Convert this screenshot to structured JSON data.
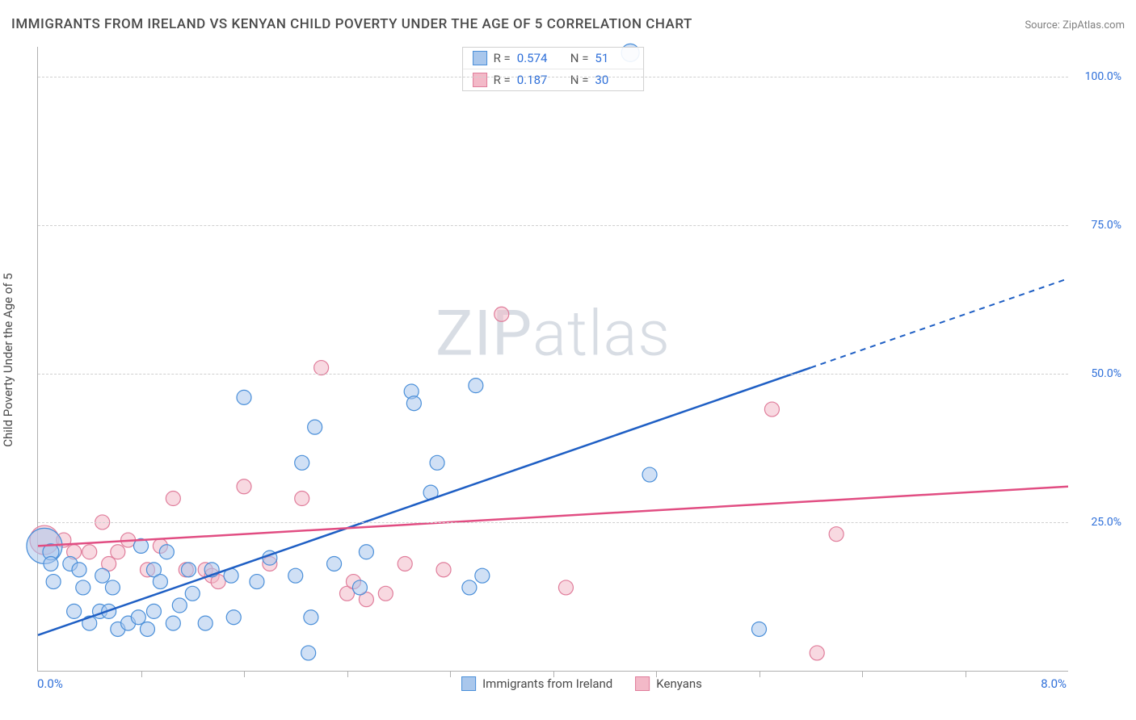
{
  "title": "IMMIGRANTS FROM IRELAND VS KENYAN CHILD POVERTY UNDER THE AGE OF 5 CORRELATION CHART",
  "source_label": "Source:",
  "source_name": "ZipAtlas.com",
  "y_axis_title": "Child Poverty Under the Age of 5",
  "watermark_a": "ZIP",
  "watermark_b": "atlas",
  "chart": {
    "type": "scatter",
    "xlim": [
      0,
      8
    ],
    "ylim": [
      0,
      105
    ],
    "x_label_min": "0.0%",
    "x_label_max": "8.0%",
    "y_ticks": [
      25,
      50,
      75,
      100
    ],
    "y_tick_labels": [
      "25.0%",
      "50.0%",
      "75.0%",
      "100.0%"
    ],
    "x_tick_positions": [
      0.8,
      1.6,
      2.4,
      3.2,
      4.0,
      4.8,
      5.6,
      6.4,
      7.2
    ],
    "grid_color": "#d0d0d0",
    "axis_color": "#b0b0b0",
    "background_color": "#ffffff",
    "label_color": "#2e6fd9",
    "title_color": "#4a4a4a",
    "title_fontsize": 17,
    "label_fontsize": 15,
    "tick_fontsize": 14
  },
  "series": [
    {
      "name": "Immigrants from Ireland",
      "fill": "#a9c7ec",
      "stroke": "#4a8fd9",
      "line_color": "#1f5fc4",
      "fill_opacity": 0.55,
      "marker_r": 9,
      "R_label": "R =",
      "R": "0.574",
      "N_label": "N =",
      "N": "51",
      "trend": {
        "x1": 0,
        "y1": 6,
        "x2": 6.0,
        "y2": 51,
        "dash_from_x": 6.0,
        "dash_to_x": 8.0,
        "dash_to_y": 66
      },
      "points": [
        {
          "x": 0.05,
          "y": 21,
          "r": 22
        },
        {
          "x": 0.1,
          "y": 20,
          "r": 10
        },
        {
          "x": 0.1,
          "y": 18,
          "r": 9
        },
        {
          "x": 0.12,
          "y": 15,
          "r": 9
        },
        {
          "x": 0.25,
          "y": 18,
          "r": 9
        },
        {
          "x": 0.28,
          "y": 10,
          "r": 9
        },
        {
          "x": 0.32,
          "y": 17,
          "r": 9
        },
        {
          "x": 0.35,
          "y": 14,
          "r": 9
        },
        {
          "x": 0.4,
          "y": 8,
          "r": 9
        },
        {
          "x": 0.48,
          "y": 10,
          "r": 9
        },
        {
          "x": 0.5,
          "y": 16,
          "r": 9
        },
        {
          "x": 0.55,
          "y": 10,
          "r": 9
        },
        {
          "x": 0.58,
          "y": 14,
          "r": 9
        },
        {
          "x": 0.62,
          "y": 7,
          "r": 9
        },
        {
          "x": 0.7,
          "y": 8,
          "r": 9
        },
        {
          "x": 0.78,
          "y": 9,
          "r": 9
        },
        {
          "x": 0.8,
          "y": 21,
          "r": 9
        },
        {
          "x": 0.85,
          "y": 7,
          "r": 9
        },
        {
          "x": 0.9,
          "y": 10,
          "r": 9
        },
        {
          "x": 0.9,
          "y": 17,
          "r": 9
        },
        {
          "x": 0.95,
          "y": 15,
          "r": 9
        },
        {
          "x": 1.0,
          "y": 20,
          "r": 9
        },
        {
          "x": 1.05,
          "y": 8,
          "r": 9
        },
        {
          "x": 1.1,
          "y": 11,
          "r": 9
        },
        {
          "x": 1.17,
          "y": 17,
          "r": 9
        },
        {
          "x": 1.2,
          "y": 13,
          "r": 9
        },
        {
          "x": 1.3,
          "y": 8,
          "r": 9
        },
        {
          "x": 1.35,
          "y": 17,
          "r": 9
        },
        {
          "x": 1.5,
          "y": 16,
          "r": 9
        },
        {
          "x": 1.52,
          "y": 9,
          "r": 9
        },
        {
          "x": 1.6,
          "y": 46,
          "r": 9
        },
        {
          "x": 1.7,
          "y": 15,
          "r": 9
        },
        {
          "x": 1.8,
          "y": 19,
          "r": 9
        },
        {
          "x": 2.0,
          "y": 16,
          "r": 9
        },
        {
          "x": 2.05,
          "y": 35,
          "r": 9
        },
        {
          "x": 2.1,
          "y": 3,
          "r": 9
        },
        {
          "x": 2.12,
          "y": 9,
          "r": 9
        },
        {
          "x": 2.15,
          "y": 41,
          "r": 9
        },
        {
          "x": 2.3,
          "y": 18,
          "r": 9
        },
        {
          "x": 2.55,
          "y": 20,
          "r": 9
        },
        {
          "x": 2.9,
          "y": 47,
          "r": 9
        },
        {
          "x": 2.92,
          "y": 45,
          "r": 9
        },
        {
          "x": 3.05,
          "y": 30,
          "r": 9
        },
        {
          "x": 3.1,
          "y": 35,
          "r": 9
        },
        {
          "x": 3.35,
          "y": 14,
          "r": 9
        },
        {
          "x": 3.4,
          "y": 48,
          "r": 9
        },
        {
          "x": 3.45,
          "y": 16,
          "r": 9
        },
        {
          "x": 4.75,
          "y": 33,
          "r": 9
        },
        {
          "x": 4.6,
          "y": 104,
          "r": 11
        },
        {
          "x": 5.6,
          "y": 7,
          "r": 9
        },
        {
          "x": 2.5,
          "y": 14,
          "r": 9
        }
      ]
    },
    {
      "name": "Kenyans",
      "fill": "#f3b9c8",
      "stroke": "#e07d9b",
      "line_color": "#e14d82",
      "fill_opacity": 0.55,
      "marker_r": 9,
      "R_label": "R =",
      "R": "0.187",
      "N_label": "N =",
      "N": "30",
      "trend": {
        "x1": 0,
        "y1": 21,
        "x2": 8.0,
        "y2": 31
      },
      "points": [
        {
          "x": 0.05,
          "y": 22,
          "r": 18
        },
        {
          "x": 0.2,
          "y": 22,
          "r": 9
        },
        {
          "x": 0.28,
          "y": 20,
          "r": 9
        },
        {
          "x": 0.4,
          "y": 20,
          "r": 9
        },
        {
          "x": 0.55,
          "y": 18,
          "r": 9
        },
        {
          "x": 0.62,
          "y": 20,
          "r": 9
        },
        {
          "x": 0.7,
          "y": 22,
          "r": 9
        },
        {
          "x": 0.85,
          "y": 17,
          "r": 9
        },
        {
          "x": 0.95,
          "y": 21,
          "r": 9
        },
        {
          "x": 1.05,
          "y": 29,
          "r": 9
        },
        {
          "x": 1.15,
          "y": 17,
          "r": 9
        },
        {
          "x": 1.3,
          "y": 17,
          "r": 9
        },
        {
          "x": 1.35,
          "y": 16,
          "r": 9
        },
        {
          "x": 1.4,
          "y": 15,
          "r": 9
        },
        {
          "x": 1.6,
          "y": 31,
          "r": 9
        },
        {
          "x": 1.8,
          "y": 18,
          "r": 9
        },
        {
          "x": 2.05,
          "y": 29,
          "r": 9
        },
        {
          "x": 2.2,
          "y": 51,
          "r": 9
        },
        {
          "x": 2.4,
          "y": 13,
          "r": 9
        },
        {
          "x": 2.45,
          "y": 15,
          "r": 9
        },
        {
          "x": 2.55,
          "y": 12,
          "r": 9
        },
        {
          "x": 2.7,
          "y": 13,
          "r": 9
        },
        {
          "x": 2.85,
          "y": 18,
          "r": 9
        },
        {
          "x": 3.15,
          "y": 17,
          "r": 9
        },
        {
          "x": 3.6,
          "y": 60,
          "r": 9
        },
        {
          "x": 4.1,
          "y": 14,
          "r": 9
        },
        {
          "x": 5.7,
          "y": 44,
          "r": 9
        },
        {
          "x": 6.2,
          "y": 23,
          "r": 9
        },
        {
          "x": 6.05,
          "y": 3,
          "r": 9
        },
        {
          "x": 0.5,
          "y": 25,
          "r": 9
        }
      ]
    }
  ],
  "legend": {
    "items": [
      {
        "label": "Immigrants from Ireland",
        "fill": "#a9c7ec",
        "stroke": "#4a8fd9"
      },
      {
        "label": "Kenyans",
        "fill": "#f3b9c8",
        "stroke": "#e07d9b"
      }
    ]
  }
}
